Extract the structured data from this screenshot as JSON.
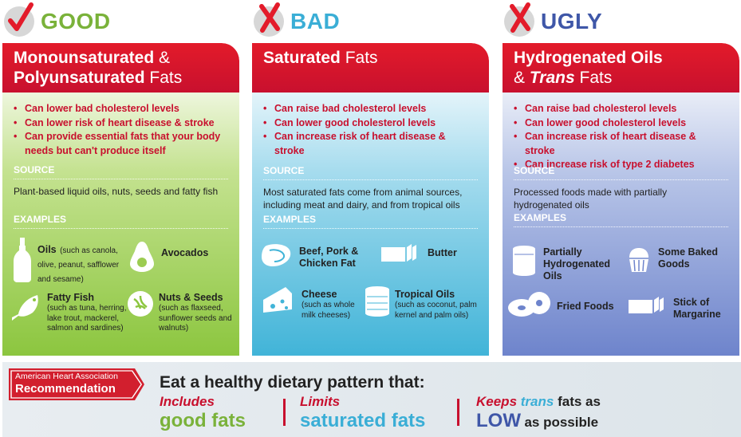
{
  "columns": {
    "good": {
      "verdict": "GOOD",
      "title_bold_1": "Monounsaturated",
      "title_amp": "&",
      "title_bold_2": "Polyunsaturated",
      "title_plain": "Fats",
      "points": [
        "Can lower bad cholesterol levels",
        "Can lower risk of heart disease & stroke",
        "Can provide essential fats that your body needs but can't produce itself"
      ],
      "source_label": "SOURCE",
      "source_text": "Plant-based liquid oils, nuts, seeds and fatty fish",
      "examples_label": "EXAMPLES",
      "examples": [
        {
          "title": "Oils",
          "note": "(such as canola, olive, peanut, safflower and sesame)",
          "icon": "oil-bottle-icon"
        },
        {
          "title": "Avocados",
          "note": "",
          "icon": "avocado-icon"
        },
        {
          "title": "Fatty Fish",
          "note": "(such as tuna, herring, lake trout, mackerel, salmon and sardines)",
          "icon": "fish-icon"
        },
        {
          "title": "Nuts & Seeds",
          "note": "(such as flaxseed, sunflower seeds and walnuts)",
          "icon": "walnut-icon"
        }
      ]
    },
    "bad": {
      "verdict": "BAD",
      "title_bold": "Saturated",
      "title_plain": "Fats",
      "points": [
        "Can raise bad cholesterol levels",
        "Can lower good cholesterol levels",
        "Can increase risk of heart disease & stroke"
      ],
      "source_label": "SOURCE",
      "source_text": "Most saturated fats come from animal sources, including meat and dairy, and from tropical oils",
      "examples_label": "EXAMPLES",
      "examples": [
        {
          "title": "Beef, Pork & Chicken Fat",
          "note": "",
          "icon": "steak-icon"
        },
        {
          "title": "Butter",
          "note": "",
          "icon": "butter-icon"
        },
        {
          "title": "Cheese",
          "note": "(such as whole milk cheeses)",
          "icon": "cheese-icon"
        },
        {
          "title": "Tropical Oils",
          "note": "(such as coconut, palm kernel and palm oils)",
          "icon": "oil-can-icon"
        }
      ]
    },
    "ugly": {
      "verdict": "UGLY",
      "title_bold_1": "Hydrogenated Oils",
      "title_amp": "&",
      "title_italic": "Trans",
      "title_plain": "Fats",
      "points": [
        "Can raise bad cholesterol levels",
        "Can lower good cholesterol levels",
        "Can increase risk of heart disease & stroke",
        "Can increase risk of type 2 diabetes"
      ],
      "source_label": "SOURCE",
      "source_text": "Processed foods made with partially hydrogenated oils",
      "examples_label": "EXAMPLES",
      "examples": [
        {
          "title": "Partially Hydrogenated Oils",
          "note": "",
          "icon": "shortening-can-icon"
        },
        {
          "title": "Some Baked Goods",
          "note": "",
          "icon": "cupcake-icon"
        },
        {
          "title": "Fried Foods",
          "note": "",
          "icon": "donut-icon"
        },
        {
          "title": "Stick of Margarine",
          "note": "",
          "icon": "margarine-icon"
        }
      ]
    }
  },
  "banner": {
    "org_line1": "American Heart Association",
    "org_line2": "Recommendation",
    "headline": "Eat a healthy dietary pattern that:",
    "rec1_top": "Includes",
    "rec1_big": "good fats",
    "rec2_top": "Limits",
    "rec2_big": "saturated fats",
    "rec3_top_a": "Keeps",
    "rec3_top_b": "trans",
    "rec3_top_c": "fats as",
    "rec3_big": "LOW",
    "rec3_rest": "as possible"
  },
  "colors": {
    "good": "#8cc63f",
    "good_text": "#7ab23a",
    "bad": "#41b4d8",
    "bad_text": "#3aaed6",
    "ugly": "#6e84cc",
    "ugly_text": "#3f57a8",
    "header_red": "#c8102e"
  }
}
